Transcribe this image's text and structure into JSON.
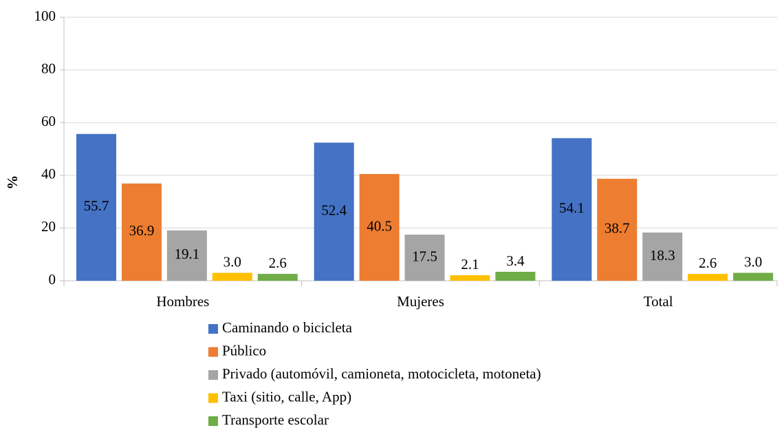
{
  "chart_data": {
    "type": "bar",
    "y_label": "%",
    "categories": [
      "Hombres",
      "Mujeres",
      "Total"
    ],
    "series": [
      {
        "name": "Caminando o bicicleta",
        "color": "#4472c4",
        "values": [
          55.7,
          52.4,
          54.1
        ]
      },
      {
        "name": "Público",
        "color": "#ed7d31",
        "values": [
          36.9,
          40.5,
          38.7
        ]
      },
      {
        "name": "Privado (automóvil, camioneta, motocicleta, motoneta)",
        "color": "#a5a5a5",
        "values": [
          19.1,
          17.5,
          18.3
        ]
      },
      {
        "name": "Taxi (sitio, calle, App)",
        "color": "#ffc000",
        "values": [
          3.0,
          2.1,
          2.6
        ],
        "value_labels": [
          "3.0",
          "2.1",
          "2.6"
        ]
      },
      {
        "name": "Transporte escolar",
        "color": "#70ad47",
        "values": [
          2.6,
          3.4,
          3.0
        ],
        "value_labels": [
          "2.6",
          "3.4",
          "3.0"
        ]
      }
    ],
    "ylim": [
      0,
      100
    ],
    "yticks": [
      0,
      20,
      40,
      60,
      80,
      100
    ],
    "grid": true,
    "legend": "bottom"
  }
}
